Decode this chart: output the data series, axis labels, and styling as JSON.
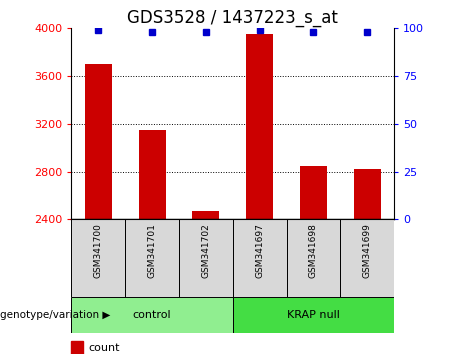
{
  "title": "GDS3528 / 1437223_s_at",
  "samples": [
    "GSM341700",
    "GSM341701",
    "GSM341702",
    "GSM341697",
    "GSM341698",
    "GSM341699"
  ],
  "counts": [
    3700,
    3150,
    2470,
    3950,
    2850,
    2820
  ],
  "percentiles": [
    99,
    98,
    98,
    99,
    98,
    98
  ],
  "groups": [
    {
      "label": "control",
      "indices": [
        0,
        1,
        2
      ],
      "color": "#90EE90"
    },
    {
      "label": "KRAP null",
      "indices": [
        3,
        4,
        5
      ],
      "color": "#44DD44"
    }
  ],
  "bar_color": "#CC0000",
  "dot_color": "#0000CC",
  "ylim_left": [
    2400,
    4000
  ],
  "ylim_right": [
    0,
    100
  ],
  "yticks_left": [
    2400,
    2800,
    3200,
    3600,
    4000
  ],
  "yticks_right": [
    0,
    25,
    50,
    75,
    100
  ],
  "gridlines": [
    2800,
    3200,
    3600
  ],
  "bar_width": 0.5,
  "sample_bg_color": "#d8d8d8",
  "title_fontsize": 12,
  "tick_fontsize": 8,
  "legend_fontsize": 8,
  "group_label_fontsize": 8,
  "sample_fontsize": 6.5
}
